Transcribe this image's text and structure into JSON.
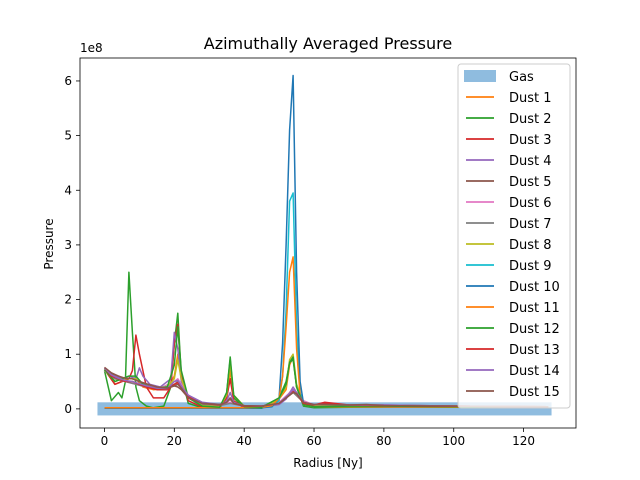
{
  "chart_data": {
    "type": "line",
    "title": "Azimuthally Averaged Pressure",
    "xlabel": "Radius [Ny]",
    "ylabel": "Pressure",
    "offset_label": "1e8",
    "xlim": [
      -7,
      135
    ],
    "ylim": [
      -0.35,
      6.42
    ],
    "x_ticks": [
      0,
      20,
      40,
      60,
      80,
      100,
      120
    ],
    "y_ticks": [
      0,
      1,
      2,
      3,
      4,
      5,
      6
    ],
    "x_tick_labels": [
      "0",
      "20",
      "40",
      "60",
      "80",
      "100",
      "120"
    ],
    "y_tick_labels": [
      "0",
      "1",
      "2",
      "3",
      "4",
      "5",
      "6"
    ],
    "grid": false,
    "legend_position": "top-right",
    "gas_band": {
      "name": "Gas",
      "x": [
        -2,
        128
      ],
      "y": [
        -0.12,
        0.12
      ],
      "color": "#8fbcdf"
    },
    "series": [
      {
        "name": "Dust 1",
        "color": "#ff7f0e",
        "x": [
          0,
          3,
          5,
          7,
          9,
          11,
          14,
          18,
          20,
          21,
          22,
          24,
          28,
          33,
          35,
          36,
          37,
          40,
          45,
          48,
          50,
          52,
          53,
          54,
          55,
          57,
          60,
          70,
          80,
          100,
          127
        ],
        "y": [
          0.72,
          0.45,
          0.5,
          0.55,
          0.55,
          0.4,
          0.35,
          0.38,
          0.6,
          1.0,
          0.6,
          0.2,
          0.06,
          0.04,
          0.2,
          0.7,
          0.2,
          0.05,
          0.03,
          0.08,
          0.18,
          0.35,
          0.8,
          0.95,
          0.4,
          0.1,
          0.05,
          0.06,
          0.06,
          0.05,
          0.04
        ]
      },
      {
        "name": "Dust 2",
        "color": "#2ca02c",
        "x": [
          0,
          2,
          4,
          5,
          6,
          7,
          8,
          9,
          10,
          12,
          14,
          17,
          19,
          20,
          21,
          22,
          24,
          28,
          33,
          35,
          36,
          37,
          40,
          45,
          50,
          52,
          53,
          54,
          55,
          57,
          60,
          70,
          80,
          100,
          127
        ],
        "y": [
          0.7,
          0.15,
          0.3,
          0.2,
          0.5,
          2.5,
          1.4,
          0.4,
          0.15,
          0.05,
          0.02,
          0.05,
          0.4,
          1.2,
          1.75,
          0.6,
          0.1,
          0.02,
          0.01,
          0.3,
          0.9,
          0.2,
          0.01,
          0.01,
          0.2,
          0.5,
          0.85,
          0.9,
          0.4,
          0.05,
          0.02,
          0.03,
          0.03,
          0.03,
          0.02
        ]
      },
      {
        "name": "Dust 3",
        "color": "#d62728",
        "x": [
          0,
          3,
          5,
          7,
          8,
          9,
          10,
          12,
          14,
          17,
          19,
          20,
          21,
          22,
          24,
          28,
          33,
          35,
          36,
          37,
          40,
          45,
          50,
          52,
          53,
          54,
          55,
          57,
          60,
          63,
          70,
          80,
          100,
          127
        ],
        "y": [
          0.72,
          0.45,
          0.5,
          0.55,
          0.7,
          1.35,
          1.0,
          0.4,
          0.2,
          0.2,
          0.4,
          1.2,
          1.55,
          0.6,
          0.15,
          0.03,
          0.02,
          0.2,
          0.55,
          0.15,
          0.02,
          0.02,
          0.1,
          0.2,
          0.3,
          0.35,
          0.3,
          0.12,
          0.04,
          0.1,
          0.05,
          0.05,
          0.04,
          0.04
        ]
      },
      {
        "name": "Dust 4",
        "color": "#9467bd",
        "x": [
          0,
          3,
          5,
          7,
          9,
          10,
          11,
          13,
          16,
          19,
          20,
          21,
          22,
          24,
          28,
          33,
          35,
          36,
          37,
          40,
          45,
          50,
          52,
          54,
          55,
          57,
          60,
          70,
          80,
          100,
          127
        ],
        "y": [
          0.72,
          0.6,
          0.55,
          0.6,
          0.55,
          0.75,
          0.6,
          0.45,
          0.4,
          0.55,
          1.4,
          1.1,
          0.5,
          0.2,
          0.06,
          0.04,
          0.15,
          0.3,
          0.12,
          0.04,
          0.03,
          0.08,
          0.18,
          0.4,
          0.3,
          0.1,
          0.05,
          0.06,
          0.06,
          0.05,
          0.04
        ]
      },
      {
        "name": "Dust 5",
        "color": "#8c564b",
        "x": [
          0,
          2,
          4,
          6,
          8,
          10,
          12,
          15,
          18,
          20,
          21,
          22,
          24,
          28,
          33,
          35,
          36,
          37,
          40,
          45,
          50,
          52,
          54,
          55,
          57,
          60,
          70,
          80,
          100,
          127
        ],
        "y": [
          0.75,
          0.65,
          0.6,
          0.55,
          0.55,
          0.5,
          0.45,
          0.4,
          0.38,
          0.42,
          0.4,
          0.35,
          0.2,
          0.1,
          0.08,
          0.12,
          0.18,
          0.1,
          0.06,
          0.05,
          0.1,
          0.2,
          0.3,
          0.28,
          0.12,
          0.08,
          0.07,
          0.07,
          0.05,
          0.04
        ]
      },
      {
        "name": "Dust 6",
        "color": "#e377c2",
        "x": [
          0,
          3,
          6,
          9,
          12,
          16,
          20,
          21,
          22,
          24,
          28,
          33,
          36,
          40,
          45,
          50,
          54,
          57,
          60,
          70,
          80,
          100,
          127
        ],
        "y": [
          0.7,
          0.55,
          0.5,
          0.45,
          0.4,
          0.38,
          0.5,
          0.55,
          0.45,
          0.25,
          0.1,
          0.08,
          0.12,
          0.06,
          0.05,
          0.12,
          0.35,
          0.15,
          0.07,
          0.06,
          0.06,
          0.05,
          0.04
        ]
      },
      {
        "name": "Dust 7",
        "color": "#7f7f7f",
        "x": [
          0,
          3,
          6,
          9,
          12,
          16,
          20,
          21,
          22,
          24,
          28,
          33,
          36,
          40,
          45,
          50,
          54,
          57,
          60,
          70,
          80,
          100,
          127
        ],
        "y": [
          0.72,
          0.55,
          0.5,
          0.45,
          0.4,
          0.37,
          0.45,
          0.5,
          0.42,
          0.22,
          0.08,
          0.06,
          0.1,
          0.05,
          0.05,
          0.1,
          0.3,
          0.12,
          0.06,
          0.06,
          0.06,
          0.05,
          0.04
        ]
      },
      {
        "name": "Dust 8",
        "color": "#bcbd22",
        "x": [
          0,
          3,
          5,
          7,
          9,
          11,
          14,
          18,
          20,
          21,
          22,
          24,
          28,
          33,
          35,
          36,
          37,
          40,
          45,
          48,
          50,
          52,
          53,
          54,
          55,
          57,
          60,
          70,
          80,
          100,
          127
        ],
        "y": [
          0.72,
          0.5,
          0.55,
          0.55,
          0.55,
          0.45,
          0.38,
          0.4,
          0.55,
          0.9,
          0.55,
          0.2,
          0.06,
          0.04,
          0.25,
          0.85,
          0.25,
          0.05,
          0.03,
          0.1,
          0.2,
          0.4,
          0.9,
          1.0,
          0.45,
          0.1,
          0.05,
          0.06,
          0.06,
          0.05,
          0.04
        ]
      },
      {
        "name": "Dust 9",
        "color": "#17becf",
        "x": [
          0,
          5,
          10,
          20,
          30,
          40,
          45,
          48,
          50,
          51,
          52,
          53,
          54,
          55,
          56,
          57,
          60,
          70,
          100,
          127
        ],
        "y": [
          0.02,
          0.02,
          0.02,
          0.02,
          0.02,
          0.02,
          0.03,
          0.05,
          0.15,
          0.6,
          1.8,
          3.8,
          3.95,
          1.5,
          0.3,
          0.08,
          0.04,
          0.04,
          0.03,
          0.03
        ]
      },
      {
        "name": "Dust 10",
        "color": "#1f77b4",
        "x": [
          0,
          5,
          10,
          20,
          30,
          40,
          45,
          48,
          50,
          51,
          52,
          53,
          54,
          55,
          56,
          57,
          60,
          70,
          100,
          127
        ],
        "y": [
          0.01,
          0.01,
          0.01,
          0.01,
          0.01,
          0.01,
          0.02,
          0.04,
          0.2,
          1.2,
          3.0,
          5.1,
          6.1,
          2.5,
          0.5,
          0.1,
          0.04,
          0.04,
          0.03,
          0.03
        ]
      },
      {
        "name": "Dust 11",
        "color": "#ff7f0e",
        "x": [
          0,
          5,
          10,
          20,
          30,
          40,
          45,
          48,
          50,
          51,
          52,
          53,
          54,
          55,
          56,
          57,
          60,
          70,
          100,
          127
        ],
        "y": [
          0.02,
          0.02,
          0.02,
          0.02,
          0.02,
          0.02,
          0.03,
          0.06,
          0.2,
          0.6,
          1.5,
          2.5,
          2.78,
          1.1,
          0.25,
          0.08,
          0.04,
          0.04,
          0.03,
          0.03
        ]
      },
      {
        "name": "Dust 12",
        "color": "#2ca02c",
        "x": [
          0,
          3,
          5,
          7,
          9,
          11,
          14,
          18,
          20,
          21,
          22,
          24,
          28,
          33,
          35,
          36,
          37,
          40,
          45,
          50,
          52,
          53,
          54,
          55,
          57,
          60,
          70,
          80,
          100,
          127
        ],
        "y": [
          0.72,
          0.5,
          0.55,
          0.6,
          0.6,
          0.45,
          0.38,
          0.4,
          0.8,
          1.5,
          0.7,
          0.2,
          0.05,
          0.03,
          0.3,
          0.95,
          0.25,
          0.04,
          0.03,
          0.2,
          0.45,
          0.85,
          0.95,
          0.4,
          0.08,
          0.04,
          0.05,
          0.05,
          0.04,
          0.04
        ]
      },
      {
        "name": "Dust 13",
        "color": "#d62728",
        "x": [
          0,
          2,
          4,
          6,
          8,
          10,
          12,
          15,
          18,
          20,
          21,
          22,
          24,
          28,
          33,
          35,
          36,
          37,
          40,
          45,
          50,
          52,
          54,
          55,
          57,
          60,
          63,
          70,
          80,
          100,
          127
        ],
        "y": [
          0.75,
          0.6,
          0.55,
          0.5,
          0.5,
          0.45,
          0.4,
          0.35,
          0.35,
          0.45,
          0.48,
          0.4,
          0.22,
          0.1,
          0.07,
          0.12,
          0.2,
          0.1,
          0.05,
          0.05,
          0.1,
          0.2,
          0.32,
          0.28,
          0.1,
          0.07,
          0.12,
          0.07,
          0.06,
          0.05,
          0.04
        ]
      },
      {
        "name": "Dust 14",
        "color": "#9467bd",
        "x": [
          0,
          2,
          4,
          6,
          8,
          10,
          12,
          15,
          18,
          20,
          21,
          22,
          24,
          28,
          33,
          35,
          36,
          37,
          40,
          45,
          50,
          52,
          54,
          55,
          57,
          60,
          70,
          80,
          100,
          127
        ],
        "y": [
          0.75,
          0.62,
          0.56,
          0.52,
          0.5,
          0.46,
          0.42,
          0.38,
          0.37,
          0.5,
          0.52,
          0.42,
          0.25,
          0.12,
          0.08,
          0.12,
          0.2,
          0.11,
          0.06,
          0.05,
          0.1,
          0.22,
          0.35,
          0.3,
          0.12,
          0.08,
          0.07,
          0.07,
          0.05,
          0.04
        ]
      },
      {
        "name": "Dust 15",
        "color": "#8c564b",
        "x": [
          0,
          2,
          4,
          6,
          8,
          10,
          12,
          15,
          18,
          20,
          21,
          22,
          24,
          28,
          33,
          35,
          36,
          37,
          40,
          45,
          50,
          52,
          54,
          55,
          57,
          60,
          63,
          70,
          75,
          80,
          100,
          127
        ],
        "y": [
          0.76,
          0.66,
          0.6,
          0.56,
          0.55,
          0.5,
          0.46,
          0.4,
          0.38,
          0.42,
          0.45,
          0.38,
          0.2,
          0.1,
          0.08,
          0.12,
          0.2,
          0.1,
          0.06,
          0.05,
          0.1,
          0.2,
          0.3,
          0.28,
          0.12,
          0.08,
          0.08,
          0.07,
          0.08,
          0.06,
          0.05,
          0.04
        ]
      }
    ]
  }
}
